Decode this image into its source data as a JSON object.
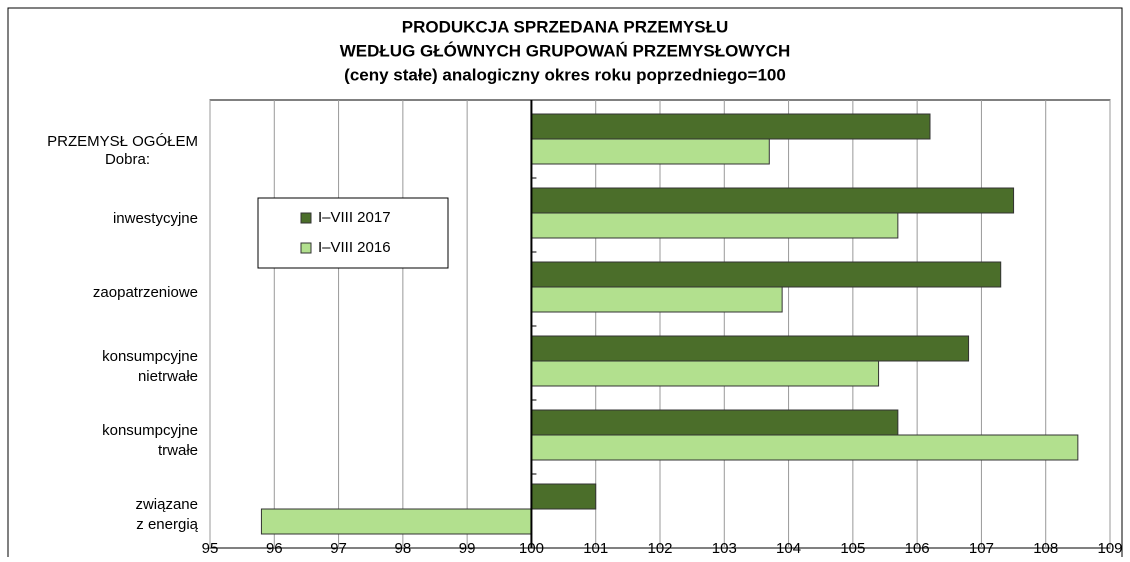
{
  "chart_data": {
    "type": "bar",
    "orientation": "horizontal",
    "title": [
      "PRODUKCJA SPRZEDANA PRZEMYSŁU",
      "WEDŁUG GŁÓWNYCH GRUPOWAŃ PRZEMYSŁOWYCH",
      "(ceny stałe)  analogiczny okres roku poprzedniego=100"
    ],
    "annotation": "Dobra:",
    "categories": [
      "PRZEMYSŁ OGÓŁEM",
      "inwestycyjne",
      "zaopatrzeniowe",
      "konsumpcyjne\nnietrwałe",
      "konsumpcyjne\ntrwałe",
      "związane\nz energią"
    ],
    "series": [
      {
        "name": "I–VIII 2017",
        "color": "#4b6e2a",
        "values": [
          106.2,
          107.5,
          107.3,
          106.8,
          105.7,
          101.0
        ]
      },
      {
        "name": "I–VIII 2016",
        "color": "#b2e08e",
        "values": [
          103.7,
          105.7,
          103.9,
          105.4,
          108.5,
          95.8
        ]
      }
    ],
    "baseline": 100,
    "xlim": [
      95,
      109
    ],
    "xticks": [
      95,
      96,
      97,
      98,
      99,
      100,
      101,
      102,
      103,
      104,
      105,
      106,
      107,
      108,
      109
    ],
    "grid": true,
    "legend": "left"
  }
}
